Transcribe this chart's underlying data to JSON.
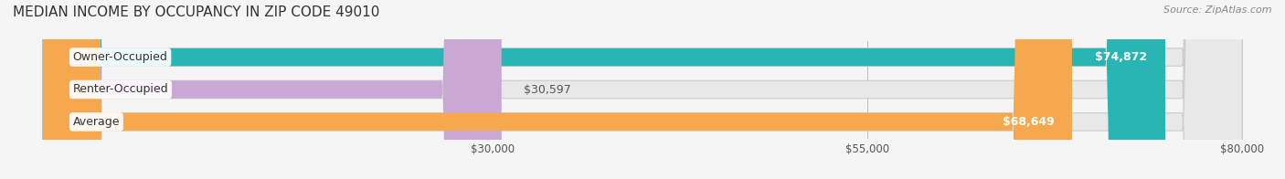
{
  "title": "MEDIAN INCOME BY OCCUPANCY IN ZIP CODE 49010",
  "source": "Source: ZipAtlas.com",
  "categories": [
    "Owner-Occupied",
    "Renter-Occupied",
    "Average"
  ],
  "values": [
    74872,
    30597,
    68649
  ],
  "bar_colors": [
    "#2ab5b5",
    "#c9a8d4",
    "#f5a84e"
  ],
  "bar_labels": [
    "$74,872",
    "$30,597",
    "$68,649"
  ],
  "xlim": [
    0,
    80000
  ],
  "xticks": [
    30000,
    55000,
    80000
  ],
  "xtick_labels": [
    "$30,000",
    "$55,000",
    "$80,000"
  ],
  "background_color": "#f5f5f5",
  "bar_bg_color": "#e8e8e8",
  "title_fontsize": 11,
  "source_fontsize": 8,
  "label_fontsize": 9,
  "bar_height": 0.55
}
